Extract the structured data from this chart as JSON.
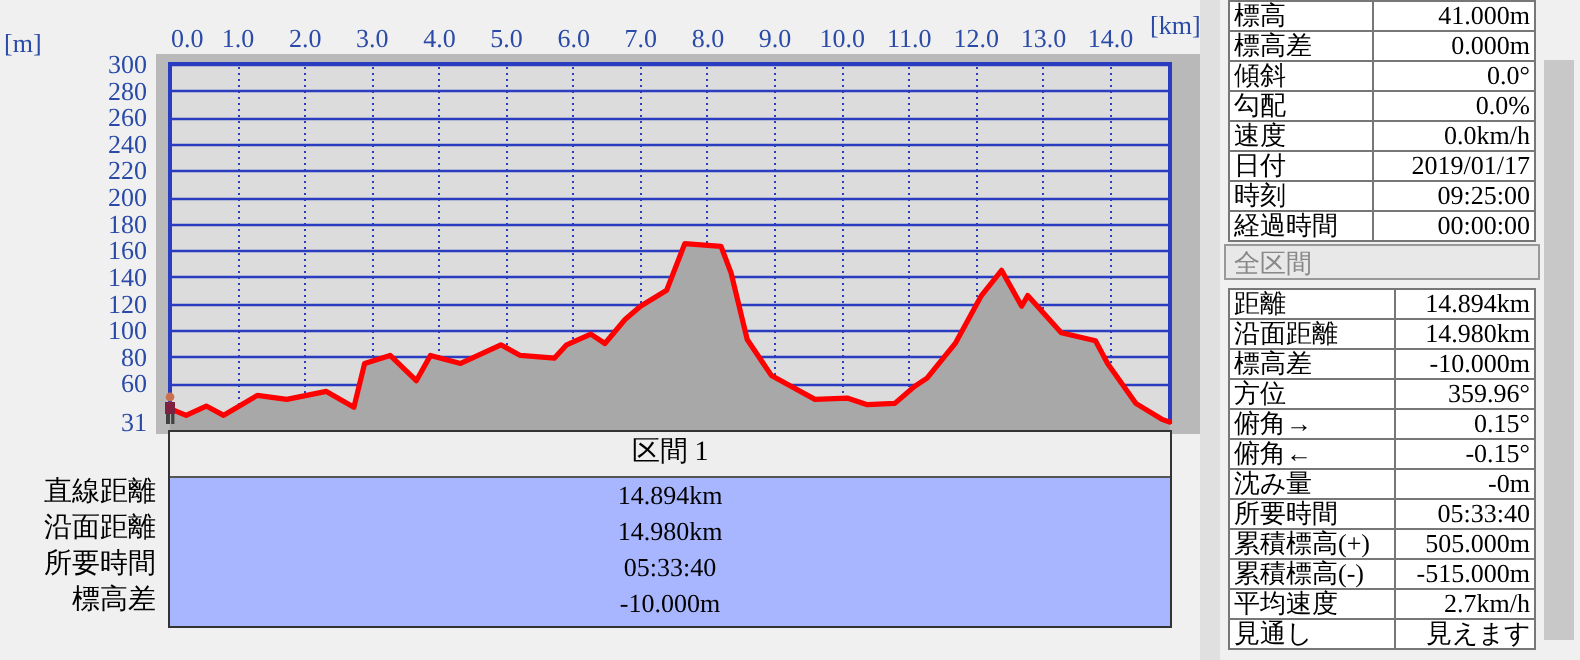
{
  "chart_data": {
    "type": "area",
    "xlabel": "[km]",
    "ylabel": "[m]",
    "xlim": [
      0,
      14.9
    ],
    "ylim": [
      31,
      300
    ],
    "xticks": [
      {
        "value": 0,
        "label": "0.0"
      },
      {
        "value": 1,
        "label": "1.0"
      },
      {
        "value": 2,
        "label": "2.0"
      },
      {
        "value": 3,
        "label": "3.0"
      },
      {
        "value": 4,
        "label": "4.0"
      },
      {
        "value": 5,
        "label": "5.0"
      },
      {
        "value": 6,
        "label": "6.0"
      },
      {
        "value": 7,
        "label": "7.0"
      },
      {
        "value": 8,
        "label": "8.0"
      },
      {
        "value": 9,
        "label": "9.0"
      },
      {
        "value": 10,
        "label": "10.0"
      },
      {
        "value": 11,
        "label": "11.0"
      },
      {
        "value": 12,
        "label": "12.0"
      },
      {
        "value": 13,
        "label": "13.0"
      },
      {
        "value": 14,
        "label": "14.0"
      }
    ],
    "yticks": [
      31,
      60,
      80,
      100,
      120,
      140,
      160,
      180,
      200,
      220,
      240,
      260,
      280,
      300
    ],
    "grid": true,
    "x": [
      0,
      0.24,
      0.54,
      0.8,
      1.3,
      1.74,
      2.33,
      2.74,
      2.9,
      3.28,
      3.67,
      3.88,
      4.33,
      4.93,
      5.22,
      5.73,
      5.91,
      6.27,
      6.48,
      6.78,
      7.01,
      7.4,
      7.67,
      8.21,
      8.36,
      8.6,
      8.96,
      9.61,
      10.09,
      10.39,
      10.8,
      11.1,
      11.28,
      11.7,
      12.09,
      12.39,
      12.69,
      12.78,
      13.28,
      13.79,
      13.97,
      14.39,
      14.78,
      14.894
    ],
    "series": [
      {
        "color": "#ff0000",
        "values": [
          41,
          36,
          43,
          36,
          51,
          48,
          54,
          42,
          75,
          81,
          62,
          81,
          75,
          89,
          81,
          79,
          89,
          97,
          90,
          108,
          118,
          130,
          165,
          163,
          143,
          93,
          66,
          48,
          49,
          44,
          45,
          58,
          64,
          90,
          126,
          145,
          118,
          126,
          98,
          92,
          75,
          45,
          33,
          31
        ]
      }
    ],
    "annotations": [
      "標高",
      "41.000m",
      "標高差",
      "0.000m",
      "傾斜",
      "0.0°",
      "勾配",
      "0.0%",
      "速度",
      "0.0km/h",
      "日付",
      "2019/01/17",
      "時刻",
      "09:25:00",
      "経過時間",
      "00:00:00",
      "全区間",
      "距離",
      "14.894km",
      "沿面距離",
      "14.980km",
      "標高差",
      "-10.000m",
      "方位",
      "359.96°",
      "俯角→",
      "0.15°",
      "俯角←",
      "-0.15°",
      "沈み量",
      "-0m",
      "所要時間",
      "05:33:40",
      "累積標高(+)",
      "505.000m",
      "累積標高(-)",
      "-515.000m",
      "平均速度",
      "2.7km/h",
      "見通し",
      "見えます",
      "区間 1",
      "直線距離",
      "14.894km",
      "沿面距離",
      "14.980km",
      "所要時間",
      "05:33:40",
      "標高差",
      "-10.000m"
    ]
  }
}
